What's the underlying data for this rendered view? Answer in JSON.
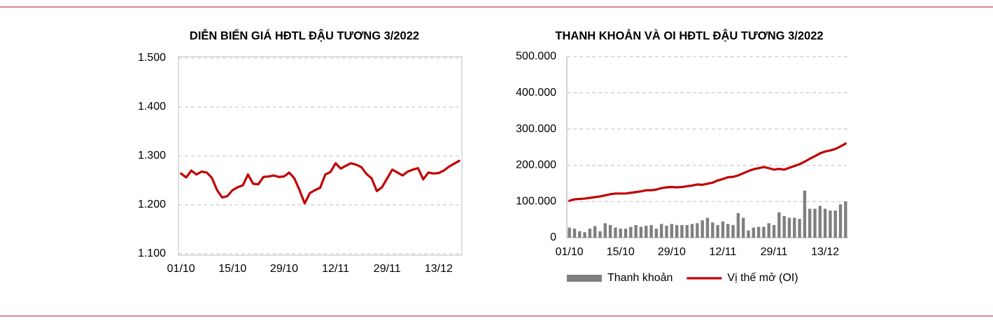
{
  "chart_data": [
    {
      "type": "line",
      "title": "DIỄN BIẾN GIÁ HĐTL ĐẬU TƯƠNG 3/2022",
      "categories": [
        "01/10",
        null,
        null,
        null,
        null,
        null,
        null,
        null,
        null,
        null,
        "15/10",
        null,
        null,
        null,
        null,
        null,
        null,
        null,
        null,
        null,
        "29/10",
        null,
        null,
        null,
        null,
        null,
        null,
        null,
        null,
        null,
        "12/11",
        null,
        null,
        null,
        null,
        null,
        null,
        null,
        null,
        null,
        "29/11",
        null,
        null,
        null,
        null,
        null,
        null,
        null,
        null,
        null,
        "13/12",
        null,
        null,
        null,
        null
      ],
      "values": [
        1264,
        1256,
        1270,
        1262,
        1268,
        1266,
        1255,
        1230,
        1215,
        1218,
        1230,
        1236,
        1240,
        1262,
        1243,
        1242,
        1257,
        1258,
        1260,
        1257,
        1258,
        1266,
        1254,
        1230,
        1203,
        1224,
        1230,
        1235,
        1262,
        1267,
        1285,
        1274,
        1280,
        1285,
        1282,
        1277,
        1263,
        1254,
        1228,
        1236,
        1254,
        1272,
        1266,
        1260,
        1268,
        1272,
        1275,
        1252,
        1266,
        1264,
        1265,
        1270,
        1278,
        1284,
        1290
      ],
      "color": "#c00000",
      "ylim": [
        1100,
        1500
      ],
      "yticks": [
        {
          "value": 1100,
          "label": "1.100"
        },
        {
          "value": 1200,
          "label": "1.200"
        },
        {
          "value": 1300,
          "label": "1.300"
        },
        {
          "value": 1400,
          "label": "1.400"
        },
        {
          "value": 1500,
          "label": "1.500"
        }
      ],
      "grid": true
    },
    {
      "type": "bar",
      "title": "THANH KHOẢN VÀ OI HĐTL ĐẬU TƯƠNG 3/2022",
      "categories": [
        "01/10",
        null,
        null,
        null,
        null,
        null,
        null,
        null,
        null,
        null,
        "15/10",
        null,
        null,
        null,
        null,
        null,
        null,
        null,
        null,
        null,
        "29/10",
        null,
        null,
        null,
        null,
        null,
        null,
        null,
        null,
        null,
        "12/11",
        null,
        null,
        null,
        null,
        null,
        null,
        null,
        null,
        null,
        "29/11",
        null,
        null,
        null,
        null,
        null,
        null,
        null,
        null,
        null,
        "13/12",
        null,
        null,
        null,
        null
      ],
      "series": [
        {
          "name": "Thanh khoản",
          "type": "bar",
          "color": "#7f7f7f",
          "values": [
            28000,
            25000,
            18000,
            15000,
            25000,
            32000,
            18000,
            40000,
            35000,
            28000,
            25000,
            25000,
            30000,
            35000,
            30000,
            33000,
            35000,
            25000,
            38000,
            33000,
            38000,
            35000,
            35000,
            35000,
            38000,
            40000,
            48000,
            55000,
            42000,
            35000,
            45000,
            38000,
            35000,
            68000,
            55000,
            20000,
            28000,
            30000,
            30000,
            40000,
            35000,
            70000,
            60000,
            55000,
            55000,
            52000,
            130000,
            80000,
            80000,
            88000,
            80000,
            75000,
            75000,
            92000,
            100000
          ]
        },
        {
          "name": "Vị thế mở (OI)",
          "type": "line",
          "color": "#c00000",
          "values": [
            102000,
            106000,
            107000,
            108000,
            110000,
            112000,
            114000,
            117000,
            120000,
            122000,
            122000,
            122000,
            124000,
            126000,
            128000,
            131000,
            131000,
            133000,
            137000,
            139000,
            140000,
            139000,
            140000,
            142000,
            144000,
            147000,
            146000,
            149000,
            152000,
            158000,
            162000,
            167000,
            168000,
            172000,
            178000,
            184000,
            189000,
            192000,
            195000,
            192000,
            188000,
            190000,
            188000,
            193000,
            198000,
            203000,
            210000,
            218000,
            225000,
            233000,
            238000,
            241000,
            245000,
            252000,
            260000
          ]
        }
      ],
      "ylim": [
        0,
        500000
      ],
      "yticks": [
        0,
        {
          "value": 100000,
          "label": "100.000"
        },
        {
          "value": 200000,
          "label": "200.000"
        },
        {
          "value": 300000,
          "label": "300.000"
        },
        {
          "value": 400000,
          "label": "400.000"
        },
        {
          "value": 500000,
          "label": "500.000"
        }
      ],
      "grid": true
    }
  ]
}
